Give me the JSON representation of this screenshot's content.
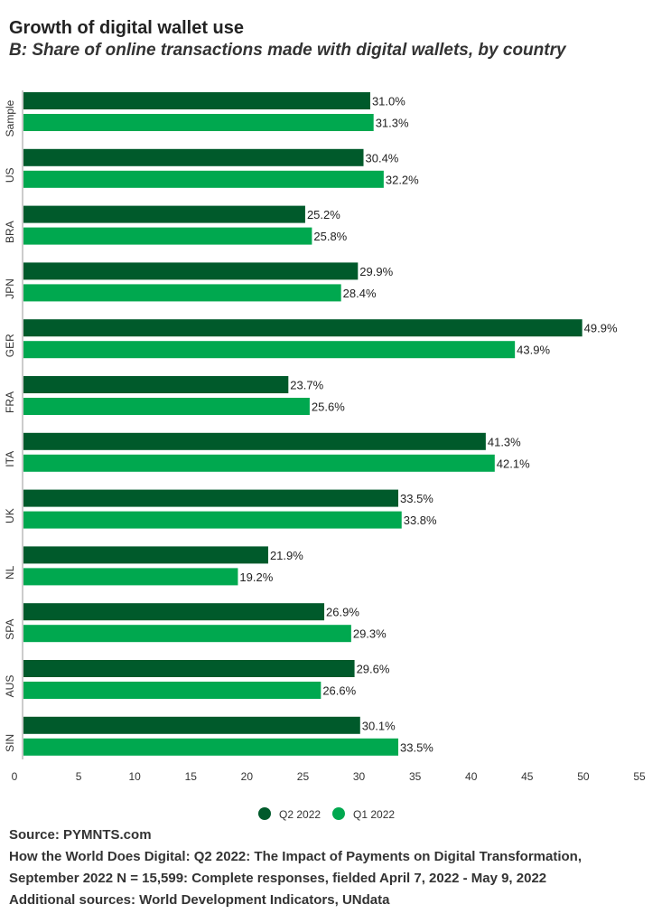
{
  "header": {
    "title": "Growth of digital wallet use",
    "subtitle": "B: Share of online transactions made with digital wallets, by country"
  },
  "colors": {
    "q2": "#005a2b",
    "q1": "#00a84f",
    "axis": "#999999"
  },
  "chart_data": {
    "type": "bar",
    "orientation": "horizontal",
    "title": "Growth of digital wallet use",
    "subtitle": "B: Share of online transactions made with digital wallets, by country",
    "categories": [
      "Sample",
      "US",
      "BRA",
      "JPN",
      "GER",
      "FRA",
      "ITA",
      "UK",
      "NL",
      "SPA",
      "AUS",
      "SIN"
    ],
    "series": [
      {
        "name": "Q2 2022",
        "values": [
          31.0,
          30.4,
          25.2,
          29.9,
          49.9,
          23.7,
          41.3,
          33.5,
          21.9,
          26.9,
          29.6,
          30.1
        ]
      },
      {
        "name": "Q1 2022",
        "values": [
          31.3,
          32.2,
          25.8,
          28.4,
          43.9,
          25.6,
          42.1,
          33.8,
          19.2,
          29.3,
          26.6,
          33.5
        ]
      }
    ],
    "xlim": [
      0,
      55
    ],
    "xticks": [
      0,
      5,
      10,
      15,
      20,
      25,
      30,
      35,
      40,
      45,
      50,
      55
    ],
    "value_suffix": "%",
    "legend_position": "bottom-center",
    "grid": false
  },
  "footer": {
    "source": "Source: PYMNTS.com",
    "line1": "How the World Does Digital: Q2 2022: The Impact of Payments on Digital Transformation,",
    "line2": "September 2022 N = 15,599: Complete responses, fielded April 7, 2022 - May 9, 2022",
    "line3": "Additional sources: World Development Indicators, UNdata"
  }
}
